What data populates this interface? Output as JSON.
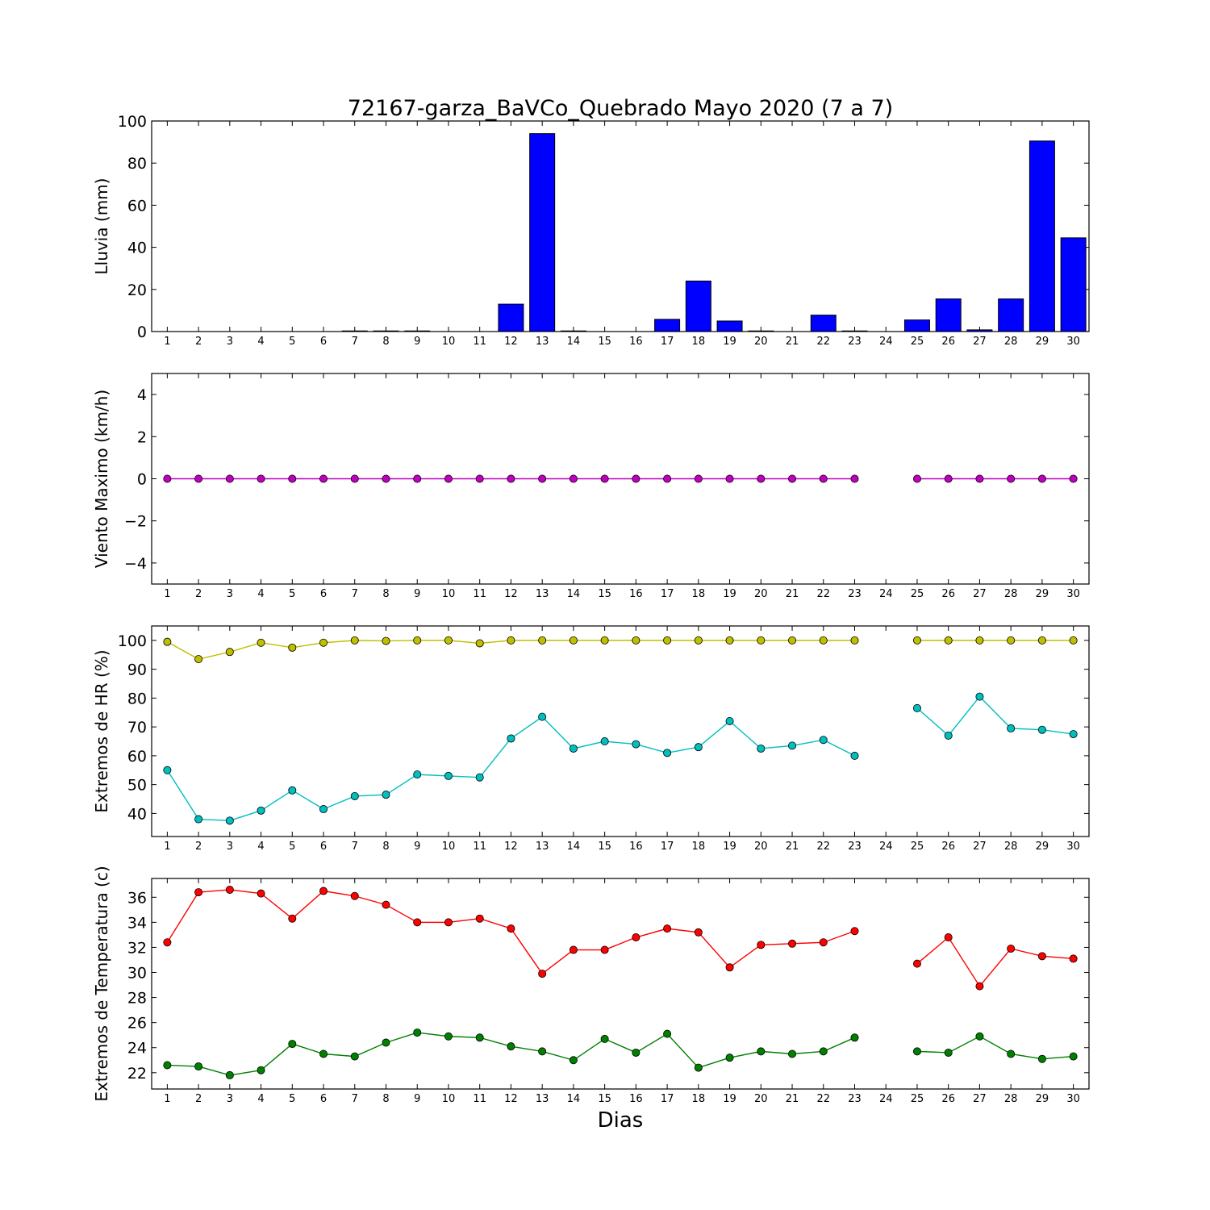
{
  "figure": {
    "title": "72167-garza_BaVCo_Quebrado Mayo 2020  (7 a 7)",
    "xlabel": "Dias"
  },
  "chart_data": [
    {
      "type": "bar",
      "ylabel": "Lluvia (mm)",
      "ylim": [
        0,
        100
      ],
      "yticks": [
        0,
        20,
        40,
        60,
        80,
        100
      ],
      "categories": [
        1,
        2,
        3,
        4,
        5,
        6,
        7,
        8,
        9,
        10,
        11,
        12,
        13,
        14,
        15,
        16,
        17,
        18,
        19,
        20,
        21,
        22,
        23,
        24,
        25,
        26,
        27,
        28,
        29,
        30
      ],
      "values": [
        0,
        0,
        0,
        0,
        0,
        0,
        0.3,
        0.3,
        0.3,
        0,
        0,
        13,
        94,
        0.3,
        0,
        0,
        5.8,
        24,
        5,
        0.3,
        0,
        7.8,
        0.3,
        0,
        5.5,
        15.5,
        0.8,
        15.5,
        90.5,
        44.5
      ],
      "color": "#0000ff"
    },
    {
      "type": "line",
      "ylabel": "Viento Maximo (km/h)",
      "ylim": [
        -5,
        5
      ],
      "yticks": [
        -4,
        -2,
        0,
        2,
        4
      ],
      "x": [
        1,
        2,
        3,
        4,
        5,
        6,
        7,
        8,
        9,
        10,
        11,
        12,
        13,
        14,
        15,
        16,
        17,
        18,
        19,
        20,
        21,
        22,
        23,
        24,
        25,
        26,
        27,
        28,
        29,
        30
      ],
      "series": [
        {
          "values": [
            0,
            0,
            0,
            0,
            0,
            0,
            0,
            0,
            0,
            0,
            0,
            0,
            0,
            0,
            0,
            0,
            0,
            0,
            0,
            0,
            0,
            0,
            0,
            null,
            0,
            0,
            0,
            0,
            0,
            0
          ],
          "color": "#bf00bf"
        }
      ]
    },
    {
      "type": "line",
      "ylabel": "Extremos de HR (%)",
      "ylim": [
        32,
        105
      ],
      "yticks": [
        40,
        50,
        60,
        70,
        80,
        90,
        100
      ],
      "x": [
        1,
        2,
        3,
        4,
        5,
        6,
        7,
        8,
        9,
        10,
        11,
        12,
        13,
        14,
        15,
        16,
        17,
        18,
        19,
        20,
        21,
        22,
        23,
        24,
        25,
        26,
        27,
        28,
        29,
        30
      ],
      "series": [
        {
          "values": [
            99.5,
            93.5,
            96,
            99.2,
            97.5,
            99.2,
            100,
            99.8,
            100,
            100,
            99,
            100,
            100,
            100,
            100,
            100,
            100,
            100,
            100,
            100,
            100,
            100,
            100,
            null,
            100,
            100,
            100,
            100,
            100,
            100
          ],
          "color": "#bfbf00"
        },
        {
          "values": [
            55,
            38,
            37.5,
            41,
            48,
            41.5,
            46,
            46.5,
            53.5,
            53,
            52.5,
            66,
            73.5,
            62.5,
            65,
            64,
            61,
            63,
            72,
            62.5,
            63.5,
            65.5,
            60,
            null,
            76.5,
            67,
            80.5,
            69.5,
            69,
            67.5
          ],
          "color": "#00bfbf"
        }
      ]
    },
    {
      "type": "line",
      "ylabel": "Extremos de Temperatura (c)",
      "ylim": [
        20.7,
        37.5
      ],
      "yticks": [
        22,
        24,
        26,
        28,
        30,
        32,
        34,
        36
      ],
      "x": [
        1,
        2,
        3,
        4,
        5,
        6,
        7,
        8,
        9,
        10,
        11,
        12,
        13,
        14,
        15,
        16,
        17,
        18,
        19,
        20,
        21,
        22,
        23,
        24,
        25,
        26,
        27,
        28,
        29,
        30
      ],
      "series": [
        {
          "values": [
            32.4,
            36.4,
            36.6,
            36.3,
            34.3,
            36.5,
            36.1,
            35.4,
            34,
            34,
            34.3,
            33.5,
            29.9,
            31.8,
            31.8,
            32.8,
            33.5,
            33.2,
            30.4,
            32.2,
            32.3,
            32.4,
            33.3,
            null,
            30.7,
            32.8,
            28.9,
            31.9,
            31.3,
            31.1
          ],
          "color": "#ff0000"
        },
        {
          "values": [
            22.6,
            22.5,
            21.8,
            22.2,
            24.3,
            23.5,
            23.3,
            24.4,
            25.2,
            24.9,
            24.8,
            24.1,
            23.7,
            23,
            24.7,
            23.6,
            25.1,
            22.4,
            23.2,
            23.7,
            23.5,
            23.7,
            24.8,
            null,
            23.7,
            23.6,
            24.9,
            23.5,
            23.1,
            23.3
          ],
          "color": "#008000"
        }
      ]
    }
  ]
}
